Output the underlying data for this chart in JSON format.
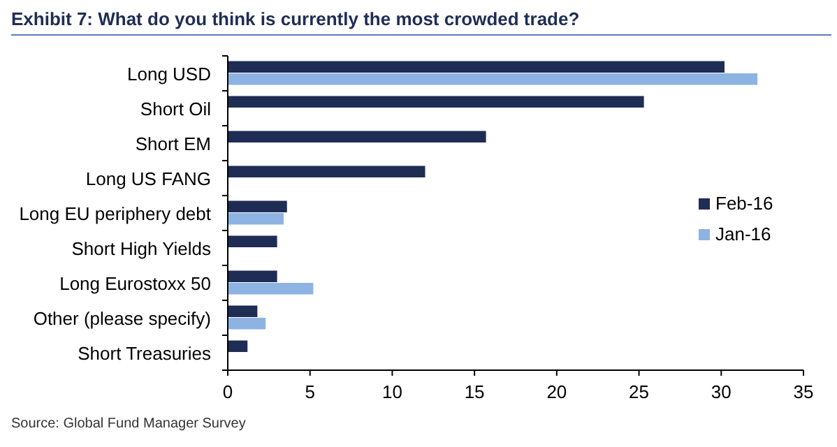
{
  "chart_data": {
    "type": "bar",
    "orientation": "horizontal",
    "title": "Exhibit 7: What do you think is currently the most crowded trade?",
    "annotations": [
      "Source: Global Fund Manager Survey"
    ],
    "categories": [
      "Long USD",
      "Short Oil",
      "Short EM",
      "Long US FANG",
      "Long EU periphery debt",
      "Short High Yields",
      "Long Eurostoxx 50",
      "Other (please specify)",
      "Short Treasuries"
    ],
    "series": [
      {
        "name": "Feb-16",
        "color": "#1f2d55",
        "values": [
          30.2,
          25.3,
          15.7,
          12.0,
          3.6,
          3.0,
          3.0,
          1.8,
          1.2
        ]
      },
      {
        "name": "Jan-16",
        "color": "#8db3e2",
        "values": [
          32.2,
          null,
          null,
          null,
          3.4,
          null,
          5.2,
          2.3,
          null
        ]
      }
    ],
    "xlim": [
      0,
      35
    ],
    "xticks": [
      0,
      5,
      10,
      15,
      20,
      25,
      30,
      35
    ],
    "grid": false,
    "legend": "right"
  }
}
